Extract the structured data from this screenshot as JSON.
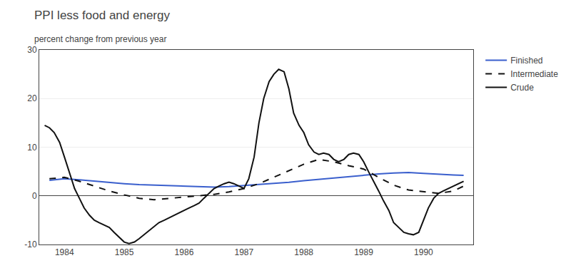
{
  "chart_data": {
    "type": "line",
    "title": "PPI less food and energy",
    "subtitle": "percent change from previous year",
    "xlim": [
      1983.58,
      1990.83
    ],
    "xticks": [
      1984,
      1985,
      1986,
      1987,
      1988,
      1989,
      1990
    ],
    "ylim": [
      -10,
      30
    ],
    "yticks": [
      -10,
      0,
      10,
      20,
      30
    ],
    "grid": "y",
    "legend": "right",
    "series": [
      {
        "name": "Finished",
        "color": "#3a5fcd",
        "line_style": "solid",
        "x": [
          1983.75,
          1984.0,
          1984.25,
          1984.5,
          1984.75,
          1985.0,
          1985.25,
          1985.5,
          1985.75,
          1986.0,
          1986.25,
          1986.5,
          1986.75,
          1987.0,
          1987.25,
          1987.5,
          1987.75,
          1988.0,
          1988.25,
          1988.5,
          1988.75,
          1989.0,
          1989.25,
          1989.5,
          1989.75,
          1990.0,
          1990.25,
          1990.5,
          1990.67
        ],
        "values": [
          3.2,
          3.5,
          3.3,
          3.0,
          2.7,
          2.5,
          2.3,
          2.2,
          2.1,
          2.0,
          1.9,
          1.8,
          1.9,
          2.1,
          2.3,
          2.5,
          2.8,
          3.1,
          3.4,
          3.7,
          4.0,
          4.2,
          4.5,
          4.7,
          4.8,
          4.6,
          4.4,
          4.3,
          4.2
        ]
      },
      {
        "name": "Intermediate",
        "color": "#111111",
        "line_style": "dashed",
        "x": [
          1983.75,
          1984.0,
          1984.25,
          1984.5,
          1984.75,
          1985.0,
          1985.25,
          1985.5,
          1985.75,
          1986.0,
          1986.25,
          1986.5,
          1986.75,
          1987.0,
          1987.25,
          1987.5,
          1987.75,
          1988.0,
          1988.25,
          1988.5,
          1988.75,
          1989.0,
          1989.25,
          1989.5,
          1989.75,
          1990.0,
          1990.25,
          1990.5,
          1990.67
        ],
        "values": [
          3.5,
          3.8,
          3.0,
          2.0,
          1.0,
          0.2,
          -0.5,
          -0.8,
          -0.5,
          -0.3,
          0.0,
          0.3,
          0.8,
          1.5,
          2.5,
          3.8,
          5.2,
          6.5,
          7.5,
          7.0,
          6.2,
          5.5,
          3.8,
          2.2,
          1.2,
          0.8,
          0.5,
          1.0,
          2.0
        ]
      },
      {
        "name": "Crude",
        "color": "#111111",
        "line_style": "solid",
        "x": [
          1983.67,
          1983.75,
          1983.83,
          1983.92,
          1984.0,
          1984.08,
          1984.17,
          1984.25,
          1984.33,
          1984.42,
          1984.5,
          1984.58,
          1984.67,
          1984.75,
          1984.83,
          1984.92,
          1985.0,
          1985.08,
          1985.17,
          1985.25,
          1985.33,
          1985.42,
          1985.5,
          1985.58,
          1985.67,
          1985.75,
          1985.83,
          1985.92,
          1986.0,
          1986.08,
          1986.17,
          1986.25,
          1986.33,
          1986.42,
          1986.5,
          1986.58,
          1986.67,
          1986.75,
          1986.83,
          1986.92,
          1987.0,
          1987.08,
          1987.17,
          1987.25,
          1987.33,
          1987.42,
          1987.5,
          1987.58,
          1987.67,
          1987.75,
          1987.83,
          1987.92,
          1988.0,
          1988.08,
          1988.17,
          1988.25,
          1988.33,
          1988.42,
          1988.5,
          1988.58,
          1988.67,
          1988.75,
          1988.83,
          1988.92,
          1989.0,
          1989.08,
          1989.17,
          1989.25,
          1989.33,
          1989.42,
          1989.5,
          1989.58,
          1989.67,
          1989.75,
          1989.83,
          1989.92,
          1990.0,
          1990.08,
          1990.17,
          1990.25,
          1990.33,
          1990.42,
          1990.5,
          1990.67
        ],
        "values": [
          14.5,
          14.0,
          13.0,
          11.0,
          8.0,
          5.0,
          1.5,
          -0.5,
          -2.5,
          -4.0,
          -5.0,
          -5.5,
          -6.0,
          -6.5,
          -7.5,
          -8.5,
          -9.5,
          -9.8,
          -9.5,
          -8.8,
          -8.0,
          -7.0,
          -6.2,
          -5.5,
          -5.0,
          -4.5,
          -4.0,
          -3.5,
          -3.0,
          -2.5,
          -2.0,
          -1.5,
          -0.5,
          0.5,
          1.5,
          2.0,
          2.5,
          2.8,
          2.5,
          2.0,
          1.5,
          3.5,
          8.0,
          15.0,
          20.0,
          23.5,
          25.0,
          26.0,
          25.5,
          22.0,
          17.0,
          14.5,
          13.0,
          10.5,
          9.0,
          8.5,
          8.8,
          8.5,
          7.5,
          7.0,
          7.5,
          8.5,
          8.8,
          8.5,
          7.0,
          5.0,
          3.0,
          1.0,
          -1.0,
          -3.0,
          -5.5,
          -6.5,
          -7.5,
          -7.8,
          -8.0,
          -7.5,
          -5.0,
          -2.5,
          -0.5,
          0.5,
          1.0,
          1.5,
          2.0,
          3.0
        ]
      }
    ]
  }
}
